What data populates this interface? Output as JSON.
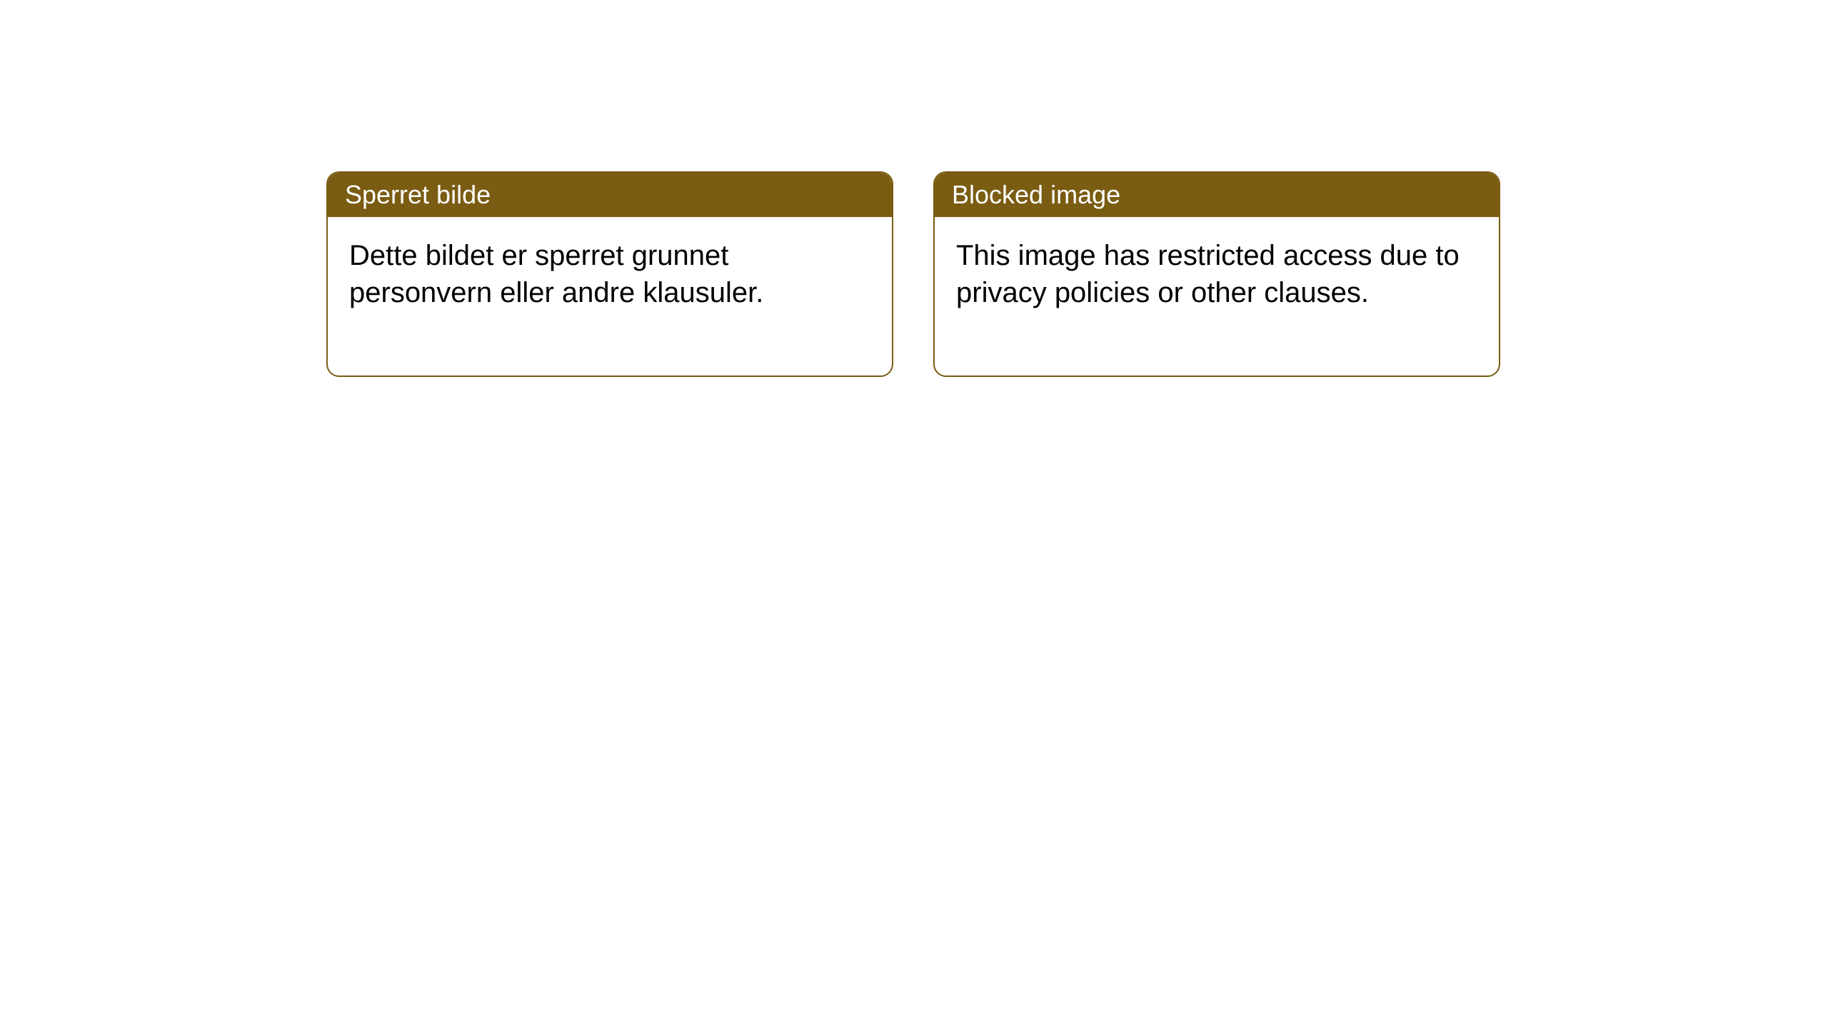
{
  "notices": [
    {
      "title": "Sperret bilde",
      "body": "Dette bildet er sperret grunnet personvern eller andre klausuler."
    },
    {
      "title": "Blocked image",
      "body": "This image has restricted access due to privacy policies or other clauses."
    }
  ],
  "styling": {
    "card_border_color": "#7a5c12",
    "card_border_width": 2,
    "card_border_radius": 18,
    "header_background_color": "#7a5c12",
    "header_text_color": "#ffffff",
    "header_font_size": 36,
    "body_background_color": "#ffffff",
    "body_text_color": "#000000",
    "body_font_size": 40,
    "page_background_color": "#ffffff"
  }
}
